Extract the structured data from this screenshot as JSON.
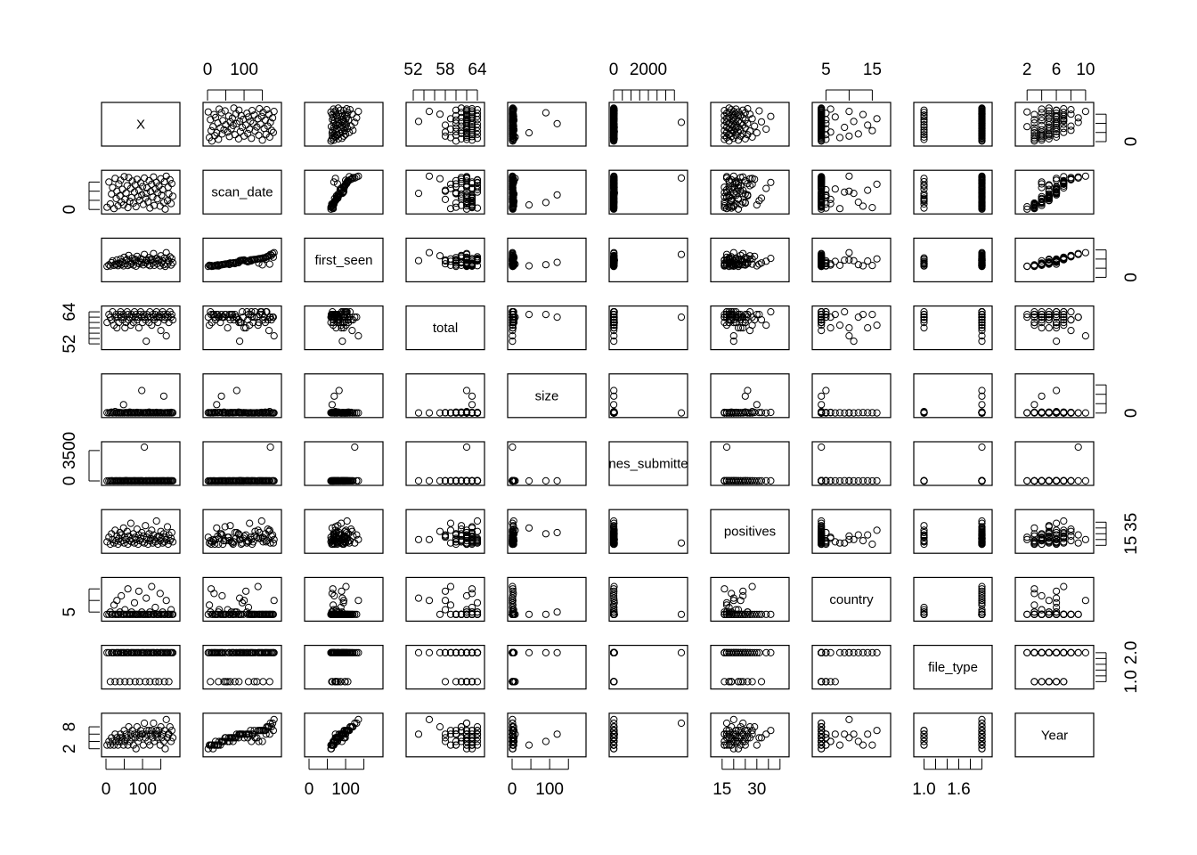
{
  "chart_data": {
    "type": "scatter",
    "subtype": "scatterplot-matrix",
    "variables": [
      "X",
      "scan_date",
      "first_seen",
      "total",
      "size",
      "times_submitted",
      "positives",
      "country",
      "file_type",
      "Year"
    ],
    "diagonal_labels": [
      "X",
      "scan_date",
      "first_seen",
      "total",
      "size",
      "nes_submitte",
      "positives",
      "country",
      "file_type",
      "Year"
    ],
    "ranges": {
      "X": [
        0,
        190
      ],
      "scan_date": [
        0,
        190
      ],
      "first_seen": [
        0,
        190
      ],
      "total": [
        51.5,
        64.5
      ],
      "size": [
        0,
        185
      ],
      "times_submitted": [
        0,
        4000
      ],
      "positives": [
        12,
        42
      ],
      "country": [
        3,
        18
      ],
      "file_type": [
        0.9,
        2.1
      ],
      "Year": [
        1,
        10.5
      ]
    },
    "axes": {
      "top": [
        {
          "variable": "scan_date",
          "ticks": [
            0,
            50,
            100,
            150
          ],
          "labels": [
            "0",
            "",
            "100",
            ""
          ]
        },
        {
          "variable": "total",
          "ticks": [
            52,
            54,
            56,
            58,
            60,
            62,
            64
          ],
          "labels": [
            "52",
            "",
            "",
            "58",
            "",
            "",
            "64"
          ]
        },
        {
          "variable": "times_submitted",
          "ticks": [
            0,
            500,
            1000,
            1500,
            2000,
            2500,
            3000,
            3500
          ],
          "labels": [
            "0",
            "",
            "",
            "",
            "2000",
            "",
            "",
            ""
          ]
        },
        {
          "variable": "country",
          "ticks": [
            5,
            10,
            15
          ],
          "labels": [
            "5",
            "",
            "15"
          ]
        },
        {
          "variable": "Year",
          "ticks": [
            2,
            4,
            6,
            8,
            10
          ],
          "labels": [
            "2",
            "",
            "6",
            "",
            "10"
          ]
        }
      ],
      "bottom": [
        {
          "variable": "X",
          "ticks": [
            0,
            50,
            100,
            150
          ],
          "labels": [
            "0",
            "",
            "100",
            ""
          ]
        },
        {
          "variable": "first_seen",
          "ticks": [
            0,
            50,
            100,
            150
          ],
          "labels": [
            "0",
            "",
            "100",
            ""
          ]
        },
        {
          "variable": "size",
          "ticks": [
            0,
            50,
            100,
            150
          ],
          "labels": [
            "0",
            "",
            "100",
            ""
          ]
        },
        {
          "variable": "positives",
          "ticks": [
            15,
            20,
            25,
            30,
            35,
            40
          ],
          "labels": [
            "15",
            "",
            "",
            "30",
            "",
            ""
          ]
        },
        {
          "variable": "file_type",
          "ticks": [
            1.0,
            1.2,
            1.4,
            1.6,
            1.8,
            2.0
          ],
          "labels": [
            "1.0",
            "",
            "",
            "1.6",
            "",
            ""
          ]
        }
      ],
      "left": [
        {
          "variable": "scan_date",
          "ticks": [
            0,
            50,
            100,
            150
          ],
          "labels": [
            "0",
            "",
            "",
            ""
          ]
        },
        {
          "variable": "total",
          "ticks": [
            52,
            54,
            56,
            58,
            60,
            62,
            64
          ],
          "labels": [
            "52",
            "",
            "",
            "",
            "",
            "",
            "64"
          ]
        },
        {
          "variable": "times_submitted",
          "ticks": [
            0,
            3500
          ],
          "labels": [
            "0",
            "3500"
          ]
        },
        {
          "variable": "country",
          "ticks": [
            5,
            10,
            15
          ],
          "labels": [
            "5",
            "",
            ""
          ]
        },
        {
          "variable": "Year",
          "ticks": [
            2,
            4,
            6,
            8
          ],
          "labels": [
            "2",
            "",
            "",
            "8"
          ]
        }
      ],
      "right": [
        {
          "variable": "X",
          "ticks": [
            0,
            50,
            100,
            150
          ],
          "labels": [
            "0",
            "",
            "",
            ""
          ]
        },
        {
          "variable": "first_seen",
          "ticks": [
            0,
            50,
            100,
            150
          ],
          "labels": [
            "0",
            "",
            "",
            ""
          ]
        },
        {
          "variable": "size",
          "ticks": [
            0,
            50,
            100,
            150
          ],
          "labels": [
            "0",
            "",
            "",
            ""
          ]
        },
        {
          "variable": "positives",
          "ticks": [
            15,
            20,
            25,
            30,
            35
          ],
          "labels": [
            "15",
            "",
            "",
            "",
            "35"
          ]
        },
        {
          "variable": "file_type",
          "ticks": [
            1.0,
            1.2,
            1.4,
            1.6,
            1.8,
            2.0
          ],
          "labels": [
            "1.0",
            "",
            "",
            "",
            "",
            "2.0"
          ]
        }
      ]
    },
    "observations": {
      "X": [
        3,
        8,
        12,
        15,
        18,
        22,
        25,
        28,
        30,
        33,
        35,
        38,
        40,
        42,
        45,
        48,
        50,
        52,
        55,
        58,
        60,
        62,
        65,
        68,
        70,
        72,
        75,
        78,
        80,
        82,
        85,
        88,
        90,
        92,
        95,
        98,
        100,
        102,
        105,
        108,
        110,
        112,
        115,
        118,
        120,
        122,
        125,
        128,
        130,
        132,
        135,
        138,
        140,
        142,
        145,
        148,
        150,
        152,
        155,
        158,
        160,
        162,
        165,
        168,
        170,
        172,
        175,
        178,
        180,
        183
      ],
      "scan_date": [
        12,
        150,
        30,
        85,
        120,
        5,
        170,
        60,
        100,
        20,
        140,
        75,
        160,
        40,
        110,
        25,
        180,
        55,
        90,
        130,
        10,
        175,
        45,
        115,
        65,
        155,
        35,
        95,
        135,
        15,
        165,
        70,
        105,
        50,
        145,
        80,
        125,
        28,
        172,
        62,
        88,
        118,
        42,
        158,
        8,
        98,
        138,
        68,
        178,
        22,
        112,
        148,
        58,
        92,
        128,
        18,
        168,
        78,
        108,
        38,
        152,
        2,
        182,
        48,
        122,
        86,
        162,
        32,
        142,
        72
      ],
      "first_seen": [
        60,
        68,
        62,
        80,
        90,
        66,
        72,
        70,
        95,
        64,
        78,
        75,
        100,
        69,
        85,
        63,
        110,
        74,
        92,
        98,
        65,
        120,
        71,
        88,
        76,
        105,
        67,
        94,
        99,
        61,
        115,
        77,
        89,
        73,
        102,
        82,
        97,
        68,
        125,
        79,
        91,
        96,
        70,
        108,
        64,
        93,
        101,
        78,
        130,
        66,
        87,
        104,
        75,
        92,
        98,
        63,
        118,
        81,
        90,
        69,
        106,
        60,
        135,
        72,
        95,
        86,
        112,
        67,
        103,
        80
      ],
      "total": [
        60,
        63,
        62,
        61,
        64,
        59,
        62,
        63,
        58,
        62,
        60,
        63,
        64,
        62,
        61,
        63,
        62,
        58,
        60,
        64,
        63,
        61,
        62,
        59,
        63,
        62,
        60,
        64,
        62,
        63,
        61,
        62,
        58,
        63,
        64,
        62,
        60,
        63,
        62,
        61,
        53,
        63,
        62,
        60,
        64,
        62,
        59,
        63,
        62,
        61,
        63,
        64,
        62,
        60,
        62,
        63,
        57,
        62,
        64,
        63,
        61,
        62,
        55,
        63,
        62,
        60,
        64,
        62,
        63,
        61
      ],
      "size": [
        2,
        1,
        3,
        5,
        1,
        2,
        8,
        1,
        2,
        4,
        1,
        3,
        1,
        2,
        1,
        45,
        1,
        2,
        3,
        1,
        2,
        1,
        5,
        1,
        2,
        1,
        3,
        1,
        2,
        1,
        4,
        1,
        2,
        1,
        3,
        120,
        1,
        2,
        1,
        3,
        1,
        2,
        1,
        5,
        1,
        2,
        1,
        3,
        1,
        2,
        1,
        4,
        1,
        2,
        1,
        3,
        1,
        2,
        1,
        90,
        1,
        2,
        1,
        3,
        1,
        2,
        1,
        4,
        1,
        2
      ],
      "times_submitted": [
        5,
        12,
        3,
        30,
        8,
        2,
        15,
        6,
        20,
        4,
        10,
        7,
        25,
        3,
        18,
        5,
        12,
        9,
        40,
        6,
        3,
        22,
        8,
        14,
        5,
        11,
        7,
        35,
        4,
        9,
        16,
        6,
        13,
        3,
        28,
        8,
        10,
        5,
        3900,
        7,
        12,
        4,
        19,
        6,
        9,
        3,
        24,
        8,
        11,
        5,
        17,
        7,
        13,
        4,
        21,
        6,
        10,
        3,
        26,
        9,
        12,
        5,
        15,
        7,
        33,
        4,
        14,
        8,
        18,
        6
      ],
      "positives": [
        18,
        22,
        16,
        25,
        20,
        17,
        28,
        19,
        23,
        16,
        21,
        26,
        18,
        24,
        19,
        30,
        17,
        22,
        20,
        27,
        16,
        23,
        19,
        34,
        18,
        21,
        25,
        17,
        22,
        20,
        29,
        16,
        24,
        19,
        21,
        26,
        18,
        23,
        17,
        32,
        20,
        22,
        16,
        25,
        19,
        21,
        28,
        17,
        24,
        20,
        18,
        36,
        22,
        16,
        23,
        19,
        27,
        21,
        17,
        25,
        18,
        22,
        20,
        31,
        16,
        24,
        19,
        21,
        26,
        18
      ],
      "country": [
        4,
        4,
        5,
        4,
        4,
        8,
        4,
        4,
        10,
        4,
        4,
        5,
        4,
        12,
        4,
        4,
        4,
        6,
        4,
        4,
        15,
        4,
        4,
        4,
        5,
        4,
        4,
        9,
        4,
        4,
        4,
        4,
        14,
        4,
        4,
        5,
        4,
        4,
        4,
        4,
        11,
        4,
        4,
        4,
        5,
        4,
        16,
        4,
        4,
        4,
        7,
        4,
        4,
        4,
        4,
        13,
        4,
        4,
        5,
        4,
        4,
        4,
        10,
        4,
        4,
        4,
        4,
        6,
        4,
        4
      ],
      "file_type": [
        2,
        2,
        1,
        2,
        2,
        2,
        1,
        2,
        2,
        2,
        2,
        1,
        2,
        2,
        2,
        2,
        2,
        1,
        2,
        2,
        2,
        2,
        1,
        2,
        2,
        2,
        2,
        2,
        1,
        2,
        2,
        2,
        2,
        1,
        2,
        2,
        2,
        2,
        2,
        1,
        2,
        2,
        2,
        2,
        1,
        2,
        2,
        2,
        2,
        2,
        1,
        2,
        2,
        2,
        1,
        2,
        2,
        2,
        2,
        2,
        1,
        2,
        2,
        2,
        2,
        1,
        2,
        2,
        2,
        2
      ],
      "Year": [
        3,
        4,
        3,
        5,
        4,
        3,
        6,
        4,
        5,
        3,
        4,
        5,
        6,
        4,
        5,
        3,
        7,
        4,
        6,
        5,
        3,
        8,
        4,
        6,
        5,
        7,
        3,
        6,
        5,
        2,
        8,
        4,
        6,
        5,
        7,
        6,
        6,
        3,
        9,
        5,
        6,
        7,
        4,
        7,
        3,
        6,
        7,
        5,
        9,
        4,
        6,
        7,
        5,
        6,
        7,
        3,
        8,
        5,
        6,
        4,
        7,
        2,
        10,
        5,
        6,
        6,
        8,
        4,
        7,
        5
      ]
    }
  }
}
